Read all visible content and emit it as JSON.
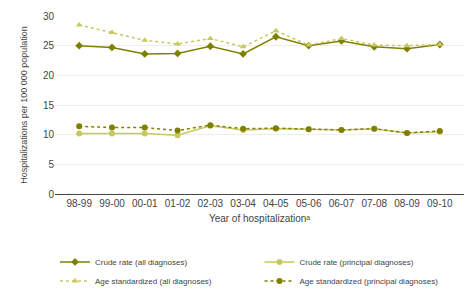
{
  "chart_data": {
    "type": "line",
    "xlabel": "Year of hospitalizationᵃ",
    "ylabel": "Hospitalizations per 100 000 population",
    "categories": [
      "98-99",
      "99-00",
      "00-01",
      "01-02",
      "02-03",
      "03-04",
      "04-05",
      "05-06",
      "06-07",
      "07-08",
      "08-09",
      "09-10"
    ],
    "series": [
      {
        "name": "Crude rate (all diagnoses)",
        "color": "#808000",
        "marker": "diamond",
        "line_style": "solid",
        "values": [
          25.0,
          24.7,
          23.6,
          23.7,
          24.9,
          23.6,
          26.5,
          25.0,
          25.8,
          24.8,
          24.5,
          25.2
        ]
      },
      {
        "name": "Crude rate (principal diagnoses)",
        "color": "#c8c860",
        "marker": "circle",
        "line_style": "solid",
        "values": [
          10.2,
          10.2,
          10.2,
          9.9,
          11.5,
          10.8,
          11.0,
          10.9,
          10.8,
          11.0,
          10.3,
          10.5
        ]
      },
      {
        "name": "Age standardized (all diagnoses)",
        "color": "#c8c860",
        "marker": "triangle-up",
        "line_style": "dotted",
        "values": [
          28.5,
          27.2,
          25.9,
          25.3,
          26.2,
          24.8,
          27.5,
          25.1,
          26.2,
          25.1,
          25.0,
          25.2
        ]
      },
      {
        "name": "Age standardized (principal diagnoses)",
        "color": "#808000",
        "marker": "circle",
        "line_style": "dotted",
        "values": [
          11.4,
          11.2,
          11.2,
          10.7,
          11.6,
          11.0,
          11.1,
          10.9,
          10.8,
          11.0,
          10.3,
          10.6
        ]
      }
    ],
    "ylim": [
      0,
      30
    ],
    "yticks": [
      0,
      5,
      10,
      15,
      20,
      25,
      30
    ],
    "grid": true,
    "legend": "bottom"
  }
}
